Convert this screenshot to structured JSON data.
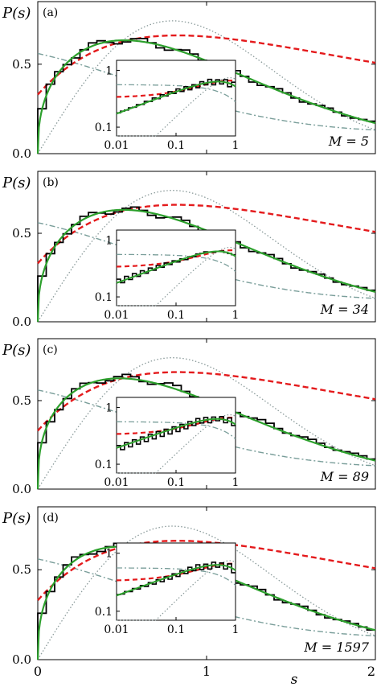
{
  "figure": {
    "xlabel": "s",
    "x_ticks": [
      "0",
      "1",
      "2"
    ],
    "ylabel": "P(s)",
    "y_ticks": [
      "0.0",
      "0.5"
    ],
    "inset_x_ticks": [
      "0.01",
      "0.1",
      "1"
    ],
    "inset_y_ticks": [
      "0.1",
      "1"
    ]
  },
  "colors": {
    "histogram": "#000000",
    "fit": "#2ca02c",
    "red_dashed": "#e41a1c",
    "dashdot": "#7a9e9a",
    "dotted": "#8a9a9a"
  },
  "chart_data": [
    {
      "type": "line",
      "panel": "(a)",
      "annotation": "M = 5",
      "M": 5,
      "xlim": [
        0,
        2
      ],
      "ylim": [
        0,
        0.85
      ],
      "x_scale": "linear",
      "inset": {
        "x_scale": "log",
        "y_scale": "log",
        "xlim": [
          0.01,
          1
        ],
        "ylim": [
          0.07,
          1.5
        ]
      },
      "histogram_alpha": 0.72,
      "fit_alpha": 0.72,
      "series_style": [
        "histogram",
        "solid",
        "dashed",
        "dash-dot",
        "dotted"
      ]
    },
    {
      "type": "line",
      "panel": "(b)",
      "annotation": "M = 34",
      "M": 34,
      "xlim": [
        0,
        2
      ],
      "ylim": [
        0,
        0.85
      ],
      "x_scale": "linear",
      "inset": {
        "x_scale": "log",
        "y_scale": "log",
        "xlim": [
          0.01,
          1
        ],
        "ylim": [
          0.07,
          1.5
        ]
      },
      "histogram_alpha": 0.71,
      "fit_alpha": 0.71,
      "series_style": [
        "histogram",
        "solid",
        "dashed",
        "dash-dot",
        "dotted"
      ]
    },
    {
      "type": "line",
      "panel": "(c)",
      "annotation": "M = 89",
      "M": 89,
      "xlim": [
        0,
        2
      ],
      "ylim": [
        0,
        0.85
      ],
      "x_scale": "linear",
      "inset": {
        "x_scale": "log",
        "y_scale": "log",
        "xlim": [
          0.01,
          1
        ],
        "ylim": [
          0.07,
          1.5
        ]
      },
      "histogram_alpha": 0.69,
      "fit_alpha": 0.66,
      "series_style": [
        "histogram",
        "solid",
        "dashed",
        "dash-dot",
        "dotted"
      ]
    },
    {
      "type": "line",
      "panel": "(d)",
      "annotation": "M = 1597",
      "M": 1597,
      "xlim": [
        0,
        2
      ],
      "ylim": [
        0,
        0.85
      ],
      "x_scale": "linear",
      "inset": {
        "x_scale": "log",
        "y_scale": "log",
        "xlim": [
          0.01,
          1
        ],
        "ylim": [
          0.07,
          1.5
        ]
      },
      "histogram_alpha": 0.68,
      "fit_alpha": 0.68,
      "series_style": [
        "histogram",
        "solid",
        "dashed",
        "dash-dot",
        "dotted"
      ]
    }
  ]
}
